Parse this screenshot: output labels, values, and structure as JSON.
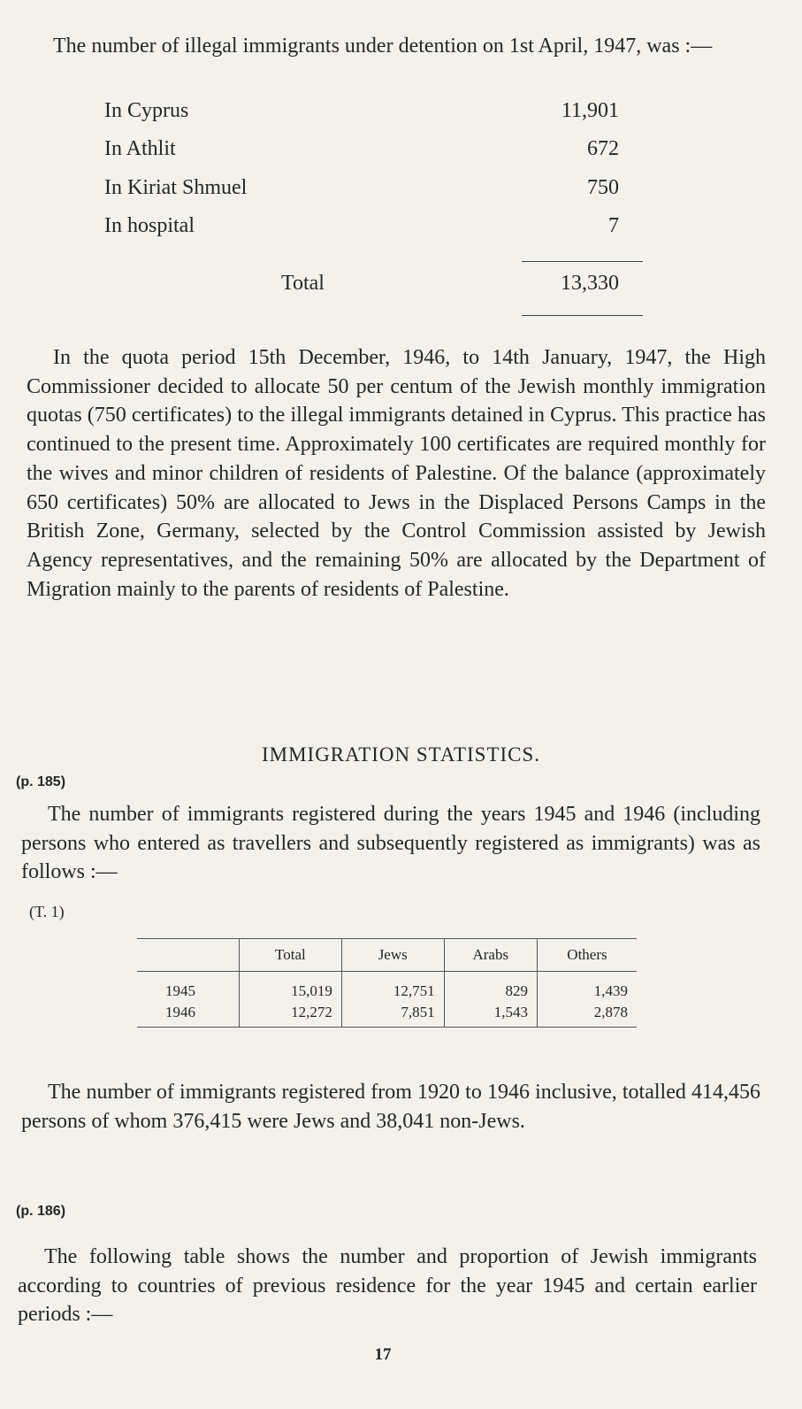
{
  "intro": "The number of illegal immigrants under detention on 1st April, 1947, was :—",
  "detention": [
    {
      "label": "In Cyprus",
      "value": "11,901"
    },
    {
      "label": "In Athlit",
      "value": "672"
    },
    {
      "label": "In Kiriat Shmuel",
      "value": "750"
    },
    {
      "label": "In hospital",
      "value": "7"
    }
  ],
  "detention_total": {
    "label": "Total",
    "value": "13,330"
  },
  "quota_paragraph": "In the quota period 15th December, 1946, to 14th January, 1947, the High Commissioner decided to allocate 50 per centum of the Jewish monthly immigration quotas (750 certificates) to the illegal immigrants detained in Cyprus. This practice has continued to the present time. Approximately 100 certificates are required monthly for the wives and minor children of residents of Palestine. Of the balance (approximately 650 certificates) 50% are allocated to Jews in the Displaced Persons Camps in the British Zone, Germany, selected by the Control Commission assisted by Jewish Agency representatives, and the remaining 50% are allocated by the Department of Migration mainly to the parents of residents of Palestine.",
  "section_heading": "IMMIGRATION STATISTICS.",
  "ref1": "(p. 185)",
  "para2": "The number of immigrants registered during the years 1945 and 1946 (including persons who entered as travellers and subsequently registered as immigrants) was as follows :—",
  "table_label": "(T. 1)",
  "table": {
    "headers": [
      "",
      "Total",
      "Jews",
      "Arabs",
      "Others"
    ],
    "rows": [
      [
        "1945",
        "15,019",
        "12,751",
        "829",
        "1,439"
      ],
      [
        "1946",
        "12,272",
        "7,851",
        "1,543",
        "2,878"
      ]
    ]
  },
  "para3": "The number of immigrants registered from 1920 to 1946 inclusive, totalled 414,456 persons of whom 376,415 were Jews and 38,041 non-Jews.",
  "ref2": "(p. 186)",
  "para4": "The following table shows the number and proportion of Jewish immigrants according to countries of previous residence for the year 1945 and certain earlier periods :—",
  "page_number": "17"
}
